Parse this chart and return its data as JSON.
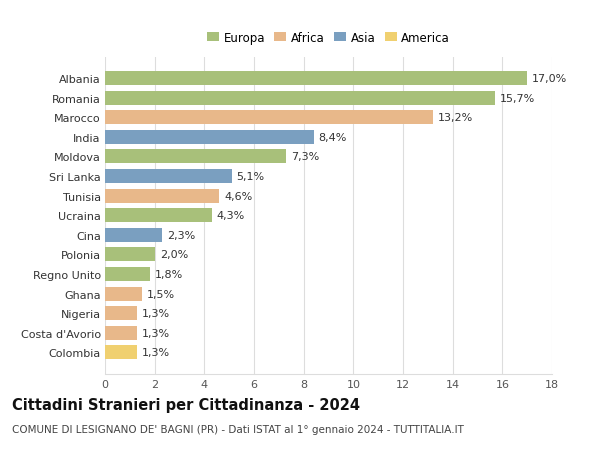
{
  "countries": [
    "Albania",
    "Romania",
    "Marocco",
    "India",
    "Moldova",
    "Sri Lanka",
    "Tunisia",
    "Ucraina",
    "Cina",
    "Polonia",
    "Regno Unito",
    "Ghana",
    "Nigeria",
    "Costa d'Avorio",
    "Colombia"
  ],
  "values": [
    17.0,
    15.7,
    13.2,
    8.4,
    7.3,
    5.1,
    4.6,
    4.3,
    2.3,
    2.0,
    1.8,
    1.5,
    1.3,
    1.3,
    1.3
  ],
  "labels": [
    "17,0%",
    "15,7%",
    "13,2%",
    "8,4%",
    "7,3%",
    "5,1%",
    "4,6%",
    "4,3%",
    "2,3%",
    "2,0%",
    "1,8%",
    "1,5%",
    "1,3%",
    "1,3%",
    "1,3%"
  ],
  "continents": [
    "Europa",
    "Europa",
    "Africa",
    "Asia",
    "Europa",
    "Asia",
    "Africa",
    "Europa",
    "Asia",
    "Europa",
    "Europa",
    "Africa",
    "Africa",
    "Africa",
    "America"
  ],
  "colors": {
    "Europa": "#a8c07a",
    "Africa": "#e8b88a",
    "Asia": "#7a9fc0",
    "America": "#f0d070"
  },
  "legend_order": [
    "Europa",
    "Africa",
    "Asia",
    "America"
  ],
  "title": "Cittadini Stranieri per Cittadinanza - 2024",
  "subtitle": "COMUNE DI LESIGNANO DE' BAGNI (PR) - Dati ISTAT al 1° gennaio 2024 - TUTTITALIA.IT",
  "xlim": [
    0,
    18
  ],
  "xticks": [
    0,
    2,
    4,
    6,
    8,
    10,
    12,
    14,
    16,
    18
  ],
  "background_color": "#ffffff",
  "grid_color": "#dddddd",
  "bar_height": 0.72,
  "label_fontsize": 8,
  "tick_fontsize": 8,
  "title_fontsize": 10.5,
  "subtitle_fontsize": 7.5,
  "legend_fontsize": 8.5
}
